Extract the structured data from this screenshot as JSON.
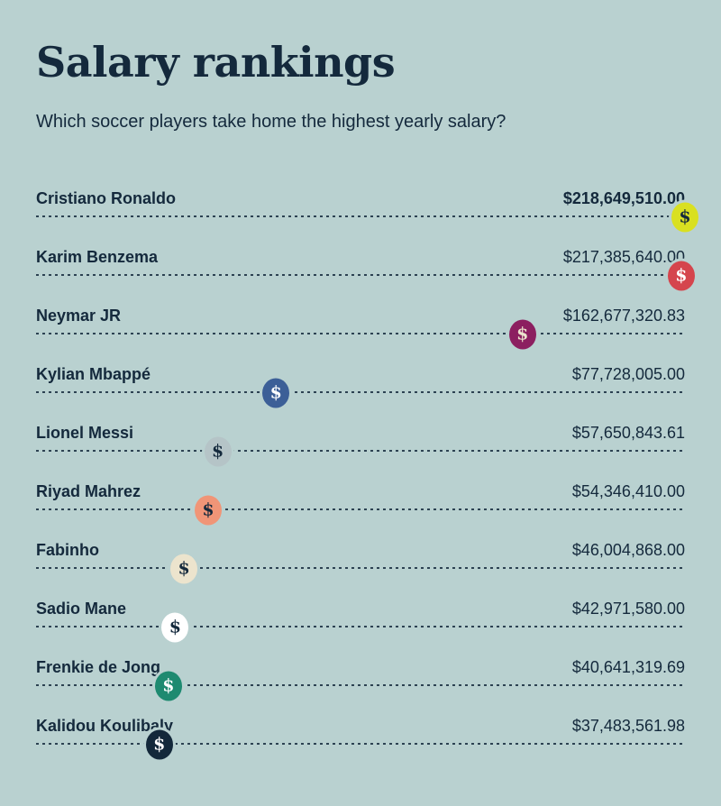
{
  "page": {
    "title": "Salary rankings",
    "subtitle": "Which soccer players take home the highest yearly salary?",
    "background_color": "#b9d1d0",
    "text_color": "#14293c",
    "dotted_line_color": "#14293c"
  },
  "chart_data": {
    "type": "bar",
    "title": "Salary rankings",
    "subtitle": "Which soccer players take home the highest yearly salary?",
    "orientation": "horizontal",
    "unit": "USD per year",
    "xlim": [
      0,
      218649510
    ],
    "legend": "none",
    "grid": "off",
    "categories": [
      "Cristiano Ronaldo",
      "Karim Benzema",
      "Neymar JR",
      "Kylian Mbappé",
      "Lionel Messi",
      "Riyad Mahrez",
      "Fabinho",
      "Sadio Mane",
      "Frenkie de Jong",
      "Kalidou Koulibaly"
    ],
    "values": [
      218649510.0,
      217385640.0,
      162677320.83,
      77728005.0,
      57650843.61,
      54346410.0,
      46004868.0,
      42971580.0,
      40641319.69,
      37483561.98
    ],
    "players": [
      {
        "name": "Cristiano Ronaldo",
        "salary_label": "$218,649,510.00",
        "salary_value": 218649510.0,
        "salary_bold": true,
        "badge_color": "#d9e021",
        "dollar_color": "#14293c",
        "dollar_icon": "$"
      },
      {
        "name": "Karim Benzema",
        "salary_label": "$217,385,640.00",
        "salary_value": 217385640.0,
        "salary_bold": false,
        "badge_color": "#d5454d",
        "dollar_color": "#ffffff",
        "dollar_icon": "$"
      },
      {
        "name": "Neymar JR",
        "salary_label": "$162,677,320.83",
        "salary_value": 162677320.83,
        "salary_bold": false,
        "badge_color": "#8c1f60",
        "dollar_color": "#ece4cd",
        "dollar_icon": "$"
      },
      {
        "name": "Kylian Mbappé",
        "salary_label": "$77,728,005.00",
        "salary_value": 77728005.0,
        "salary_bold": false,
        "badge_color": "#3c5f97",
        "dollar_color": "#ffffff",
        "dollar_icon": "$"
      },
      {
        "name": "Lionel Messi",
        "salary_label": "$57,650,843.61",
        "salary_value": 57650843.61,
        "salary_bold": false,
        "badge_color": "#b5c4c7",
        "dollar_color": "#14293c",
        "dollar_icon": "$"
      },
      {
        "name": "Riyad Mahrez",
        "salary_label": "$54,346,410.00",
        "salary_value": 54346410.0,
        "salary_bold": false,
        "badge_color": "#f09577",
        "dollar_color": "#14293c",
        "dollar_icon": "$"
      },
      {
        "name": "Fabinho",
        "salary_label": "$46,004,868.00",
        "salary_value": 46004868.0,
        "salary_bold": false,
        "badge_color": "#ece4cd",
        "dollar_color": "#14293c",
        "dollar_icon": "$"
      },
      {
        "name": "Sadio Mane",
        "salary_label": "$42,971,580.00",
        "salary_value": 42971580.0,
        "salary_bold": false,
        "badge_color": "#ffffff",
        "dollar_color": "#14293c",
        "dollar_icon": "$"
      },
      {
        "name": "Frenkie de Jong",
        "salary_label": "$40,641,319.69",
        "salary_value": 40641319.69,
        "salary_bold": false,
        "badge_color": "#1e8a70",
        "dollar_color": "#ffffff",
        "dollar_icon": "$"
      },
      {
        "name": "Kalidou Koulibaly",
        "salary_label": "$37,483,561.98",
        "salary_value": 37483561.98,
        "salary_bold": false,
        "badge_color": "#13283a",
        "dollar_color": "#ffffff",
        "dollar_icon": "$"
      }
    ]
  }
}
